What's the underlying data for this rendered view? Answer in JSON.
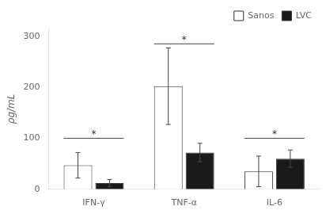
{
  "chart_data": {
    "type": "bar",
    "categories": [
      "IFN-γ",
      "TNF-α",
      "IL-6"
    ],
    "series": [
      {
        "name": "Sanos",
        "color": "#ffffff",
        "values": [
          47,
          202,
          35
        ],
        "errors": [
          25,
          75,
          30
        ]
      },
      {
        "name": "LVC",
        "color": "#1a1a1a",
        "values": [
          12,
          72,
          60
        ],
        "errors": [
          7,
          18,
          17
        ]
      }
    ],
    "ylabel": "ρg/mL",
    "ylim": [
      0,
      315
    ],
    "yticks": [
      0,
      100,
      200,
      300
    ],
    "grid": false,
    "legend": "upper right",
    "significance": [
      {
        "category": "IFN-γ",
        "y": 100,
        "text": "*",
        "text_y": 103
      },
      {
        "category": "TNF-α",
        "y": 285,
        "text": "*",
        "text_y": 288
      },
      {
        "category": "IL-6",
        "y": 100,
        "text": "*",
        "text_y": 103
      }
    ]
  }
}
